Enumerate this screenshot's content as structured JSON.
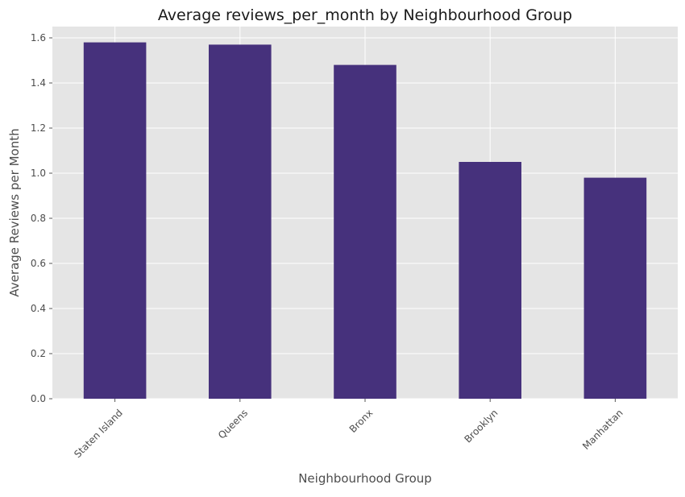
{
  "chart_data": {
    "type": "bar",
    "title": "Average reviews_per_month by Neighbourhood Group",
    "xlabel": "Neighbourhood Group",
    "ylabel": "Average Reviews per Month",
    "categories": [
      "Staten Island",
      "Queens",
      "Bronx",
      "Brooklyn",
      "Manhattan"
    ],
    "values": [
      1.58,
      1.57,
      1.48,
      1.05,
      0.98
    ],
    "ylim": [
      0,
      1.65
    ],
    "yticks": [
      0.0,
      0.2,
      0.4,
      0.6,
      0.8,
      1.0,
      1.2,
      1.4,
      1.6
    ],
    "ytick_labels": [
      "0.0",
      "0.2",
      "0.4",
      "0.6",
      "0.8",
      "1.0",
      "1.2",
      "1.4",
      "1.6"
    ],
    "grid": true,
    "colors": {
      "bar": "#46317c",
      "plot_background": "#e5e5e5",
      "grid": "#ffffff"
    }
  }
}
